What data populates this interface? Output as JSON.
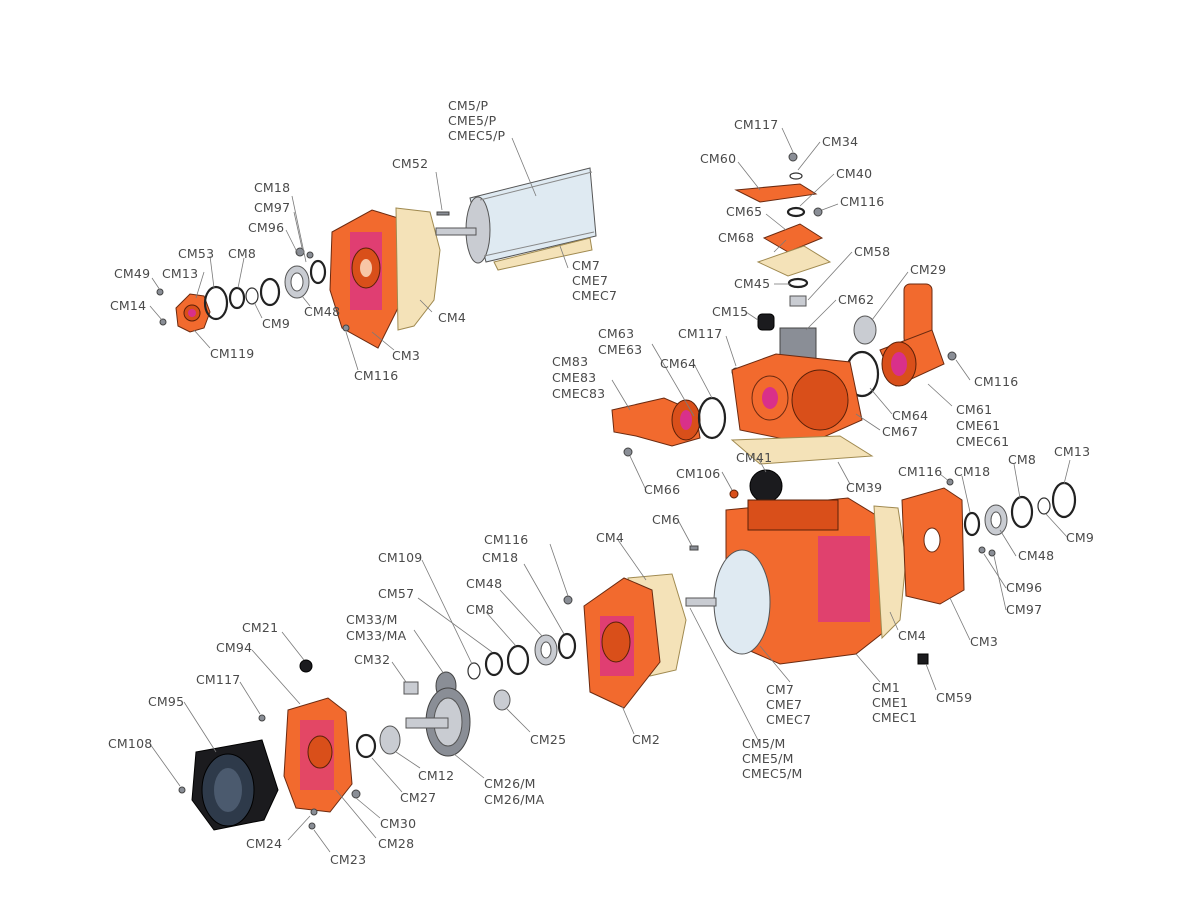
{
  "labels": {
    "cm5p": [
      "CM5/P",
      "CME5/P",
      "CMEC5/P"
    ],
    "cm52": "CM52",
    "cm18_a": "CM18",
    "cm97_a": "CM97",
    "cm96_a": "CM96",
    "cm53": "CM53",
    "cm8_a": "CM8",
    "cm49": "CM49",
    "cm13_a": "CM13",
    "cm14": "CM14",
    "cm9_a": "CM9",
    "cm48_a": "CM48",
    "cm119": "CM119",
    "cm4_a": "CM4",
    "cm3_a": "CM3",
    "cm116_a": "CM116",
    "cm7_a": [
      "CM7",
      "CME7",
      "CMEC7"
    ],
    "cm117_a": "CM117",
    "cm34": "CM34",
    "cm60": "CM60",
    "cm40": "CM40",
    "cm65": "CM65",
    "cm116_b": "CM116",
    "cm68": "CM68",
    "cm58": "CM58",
    "cm29": "CM29",
    "cm45": "CM45",
    "cm62": "CM62",
    "cm15": "CM15",
    "cm63": [
      "CM63",
      "CME63"
    ],
    "cm117_b": "CM117",
    "cm83": [
      "CM83",
      "CME83",
      "CMEC83"
    ],
    "cm64_a": "CM64",
    "cm116_c": "CM116",
    "cm64_b": "CM64",
    "cm61": [
      "CM61",
      "CME61",
      "CMEC61"
    ],
    "cm67": "CM67",
    "cm39": "CM39",
    "cm66": "CM66",
    "cm41": "CM41",
    "cm106": "CM106",
    "cm116_d": "CM116",
    "cm18_b": "CM18",
    "cm8_b": "CM8",
    "cm13_b": "CM13",
    "cm9_b": "CM9",
    "cm48_b": "CM48",
    "cm96_b": "CM96",
    "cm97_b": "CM97",
    "cm3_b": "CM3",
    "cm4_b": "CM4",
    "cm6": "CM6",
    "cm4_c": "CM4",
    "cm116_e": "CM116",
    "cm18_c": "CM18",
    "cm109": "CM109",
    "cm48_c": "CM48",
    "cm57": "CM57",
    "cm8_c": "CM8",
    "cm33": [
      "CM33/M",
      "CM33/MA"
    ],
    "cm32": "CM32",
    "cm21": "CM21",
    "cm94": "CM94",
    "cm117_c": "CM117",
    "cm95": "CM95",
    "cm108": "CM108",
    "cm25": "CM25",
    "cm2": "CM2",
    "cm7_b": [
      "CM7",
      "CME7",
      "CMEC7"
    ],
    "cm1": [
      "CM1",
      "CME1",
      "CMEC1"
    ],
    "cm59": "CM59",
    "cm5m": [
      "CM5/M",
      "CME5/M",
      "CMEC5/M"
    ],
    "cm12": "CM12",
    "cm26": [
      "CM26/M",
      "CM26/MA"
    ],
    "cm27": "CM27",
    "cm30": "CM30",
    "cm28": "CM28",
    "cm24": "CM24",
    "cm23": "CM23"
  },
  "colors": {
    "body": "#f26a2e",
    "accent": "#d9308a",
    "gasket": "#f4e2b8",
    "label": "#4a4a4a"
  }
}
